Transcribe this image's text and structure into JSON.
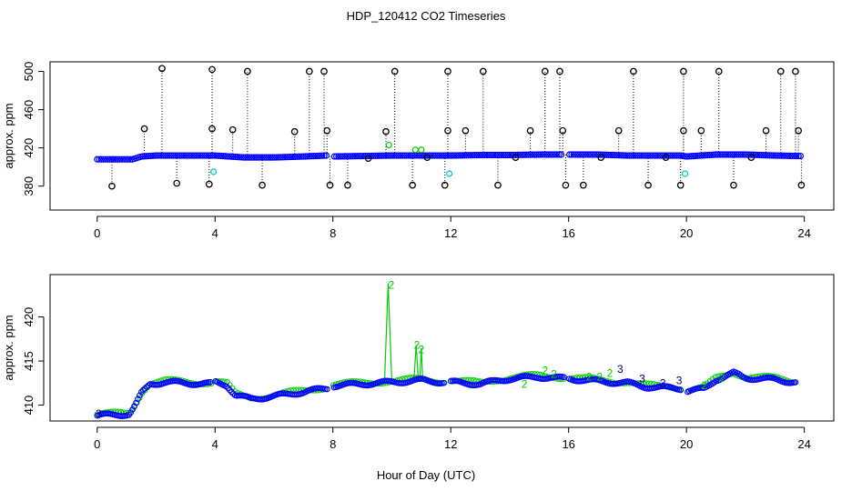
{
  "title": "HDP_120412  CO2 Timeseries",
  "xlabel": "Hour of Day (UTC)",
  "colors": {
    "primary": "#0000ff",
    "secondary": "#00cc00",
    "spike_a": "#000000",
    "spike_b": "#00cccc",
    "frame": "#000000"
  },
  "chart_data": [
    {
      "type": "scatter",
      "name": "top-panel",
      "ylabel": "approx. ppm",
      "xlim": [
        -1.6,
        25.0
      ],
      "ylim": [
        355,
        510
      ],
      "xticks": [
        0,
        4,
        8,
        12,
        16,
        20,
        24
      ],
      "yticks": [
        380,
        420,
        460,
        500
      ],
      "baseline": [
        [
          0,
          408
        ],
        [
          1.2,
          408
        ],
        [
          1.5,
          411
        ],
        [
          2,
          412
        ],
        [
          3,
          412
        ],
        [
          4,
          412
        ],
        [
          4.5,
          411
        ],
        [
          5,
          410
        ],
        [
          6,
          410
        ],
        [
          7,
          411
        ],
        [
          7.8,
          412
        ],
        [
          8,
          411
        ],
        [
          9,
          411.5
        ],
        [
          10,
          412
        ],
        [
          11,
          412
        ],
        [
          12,
          412
        ],
        [
          13,
          412.5
        ],
        [
          14,
          412.5
        ],
        [
          15,
          413
        ],
        [
          15.8,
          413
        ],
        [
          16,
          413
        ],
        [
          17,
          413
        ],
        [
          18,
          412
        ],
        [
          19,
          412
        ],
        [
          19.8,
          412
        ],
        [
          20,
          411
        ],
        [
          21,
          413
        ],
        [
          22,
          413
        ],
        [
          23,
          412
        ],
        [
          23.8,
          411.5
        ]
      ],
      "gaps": [
        [
          7.8,
          8.0
        ],
        [
          15.8,
          16.0
        ]
      ],
      "spikes_black": [
        [
          0.5,
          380
        ],
        [
          1.6,
          440
        ],
        [
          2.2,
          503
        ],
        [
          2.7,
          383
        ],
        [
          3.8,
          382
        ],
        [
          3.9,
          502
        ],
        [
          3.9,
          440
        ],
        [
          4.6,
          439
        ],
        [
          5.1,
          500
        ],
        [
          5.6,
          381
        ],
        [
          6.7,
          437
        ],
        [
          7.2,
          500
        ],
        [
          7.7,
          500
        ],
        [
          7.8,
          438
        ],
        [
          7.9,
          381
        ],
        [
          8.5,
          381
        ],
        [
          9.2,
          409
        ],
        [
          9.8,
          437
        ],
        [
          10.1,
          500
        ],
        [
          10.7,
          381
        ],
        [
          11.2,
          410
        ],
        [
          11.8,
          381
        ],
        [
          11.9,
          500
        ],
        [
          11.9,
          438
        ],
        [
          12.5,
          438
        ],
        [
          13.1,
          500
        ],
        [
          13.6,
          381
        ],
        [
          14.2,
          410
        ],
        [
          14.7,
          438
        ],
        [
          15.2,
          500
        ],
        [
          15.7,
          500
        ],
        [
          15.8,
          438
        ],
        [
          15.9,
          381
        ],
        [
          16.5,
          381
        ],
        [
          17.1,
          410
        ],
        [
          17.7,
          438
        ],
        [
          18.2,
          500
        ],
        [
          18.7,
          381
        ],
        [
          19.3,
          410
        ],
        [
          19.8,
          381
        ],
        [
          19.9,
          500
        ],
        [
          19.9,
          438
        ],
        [
          20.5,
          438
        ],
        [
          21.1,
          500
        ],
        [
          21.6,
          381
        ],
        [
          22.2,
          410
        ],
        [
          22.7,
          438
        ],
        [
          23.2,
          500
        ],
        [
          23.7,
          500
        ],
        [
          23.8,
          438
        ],
        [
          23.9,
          381
        ]
      ],
      "spikes_cyan": [
        [
          3.95,
          395
        ],
        [
          11.95,
          393
        ],
        [
          19.95,
          393
        ]
      ],
      "green_marks": [
        [
          9.9,
          423
        ],
        [
          10.8,
          418
        ],
        [
          11.0,
          418
        ]
      ]
    },
    {
      "type": "scatter",
      "name": "bottom-panel",
      "ylabel": "approx. ppm",
      "xlim": [
        -1.6,
        25.0
      ],
      "ylim": [
        408.2,
        424.8
      ],
      "xticks": [
        0,
        4,
        8,
        12,
        16,
        20,
        24
      ],
      "yticks": [
        410,
        415,
        420
      ],
      "series": [
        [
          0,
          408.8
        ],
        [
          0.6,
          408.9
        ],
        [
          1.1,
          409.0
        ],
        [
          1.3,
          410.0
        ],
        [
          1.5,
          411.3
        ],
        [
          1.8,
          412.4
        ],
        [
          2.3,
          412.6
        ],
        [
          3,
          412.5
        ],
        [
          3.9,
          412.4
        ],
        [
          4.0,
          412.6
        ],
        [
          4.4,
          412.3
        ],
        [
          4.7,
          411.1
        ],
        [
          5.2,
          410.7
        ],
        [
          6,
          411.0
        ],
        [
          7,
          411.5
        ],
        [
          7.8,
          411.9
        ],
        [
          8.0,
          412.2
        ],
        [
          9,
          412.4
        ],
        [
          10,
          412.6
        ],
        [
          11,
          412.8
        ],
        [
          11.8,
          412.6
        ],
        [
          12,
          412.6
        ],
        [
          13,
          412.4
        ],
        [
          14,
          413.0
        ],
        [
          15,
          413.2
        ],
        [
          15.9,
          413.0
        ],
        [
          16,
          413.0
        ],
        [
          17,
          412.7
        ],
        [
          18,
          412.5
        ],
        [
          18.6,
          412.1
        ],
        [
          19,
          412.0
        ],
        [
          19.8,
          411.9
        ],
        [
          20,
          411.6
        ],
        [
          20.6,
          411.8
        ],
        [
          21,
          412.9
        ],
        [
          21.6,
          413.6
        ],
        [
          22,
          413.1
        ],
        [
          23,
          412.9
        ],
        [
          23.7,
          412.6
        ]
      ],
      "gaps": [
        [
          3.9,
          4.0
        ],
        [
          7.8,
          8.0
        ],
        [
          11.8,
          12.0
        ],
        [
          15.9,
          16.0
        ],
        [
          19.8,
          20.0
        ]
      ],
      "secondary_spikes": [
        [
          9.75,
          10.0,
          423.8
        ],
        [
          10.75,
          10.9,
          416.8
        ],
        [
          10.95,
          11.05,
          416.5
        ]
      ],
      "labels": [
        {
          "x": 0.05,
          "y": 409.0,
          "text": "3",
          "series": "blue"
        },
        {
          "x": 9.98,
          "y": 423.6,
          "text": "2",
          "series": "green"
        },
        {
          "x": 10.85,
          "y": 416.8,
          "text": "2",
          "series": "green"
        },
        {
          "x": 11.0,
          "y": 416.3,
          "text": "2",
          "series": "green"
        },
        {
          "x": 15.2,
          "y": 413.9,
          "text": "2",
          "series": "green"
        },
        {
          "x": 15.5,
          "y": 413.5,
          "text": "2",
          "series": "green"
        },
        {
          "x": 16.7,
          "y": 413.2,
          "text": "2",
          "series": "green"
        },
        {
          "x": 17.05,
          "y": 413.2,
          "text": "2",
          "series": "green"
        },
        {
          "x": 17.75,
          "y": 414.1,
          "text": "3",
          "series": "blue"
        },
        {
          "x": 18.5,
          "y": 413.0,
          "text": "3",
          "series": "blue"
        },
        {
          "x": 19.2,
          "y": 412.5,
          "text": "3",
          "series": "blue"
        },
        {
          "x": 19.75,
          "y": 412.8,
          "text": "3",
          "series": "blue"
        },
        {
          "x": 14.5,
          "y": 412.4,
          "text": "2",
          "series": "green"
        },
        {
          "x": 17.4,
          "y": 413.6,
          "text": "2",
          "series": "green"
        },
        {
          "x": 20.6,
          "y": 412.2,
          "text": "2",
          "series": "green"
        },
        {
          "x": 21.2,
          "y": 413.1,
          "text": "2",
          "series": "green"
        }
      ]
    }
  ]
}
